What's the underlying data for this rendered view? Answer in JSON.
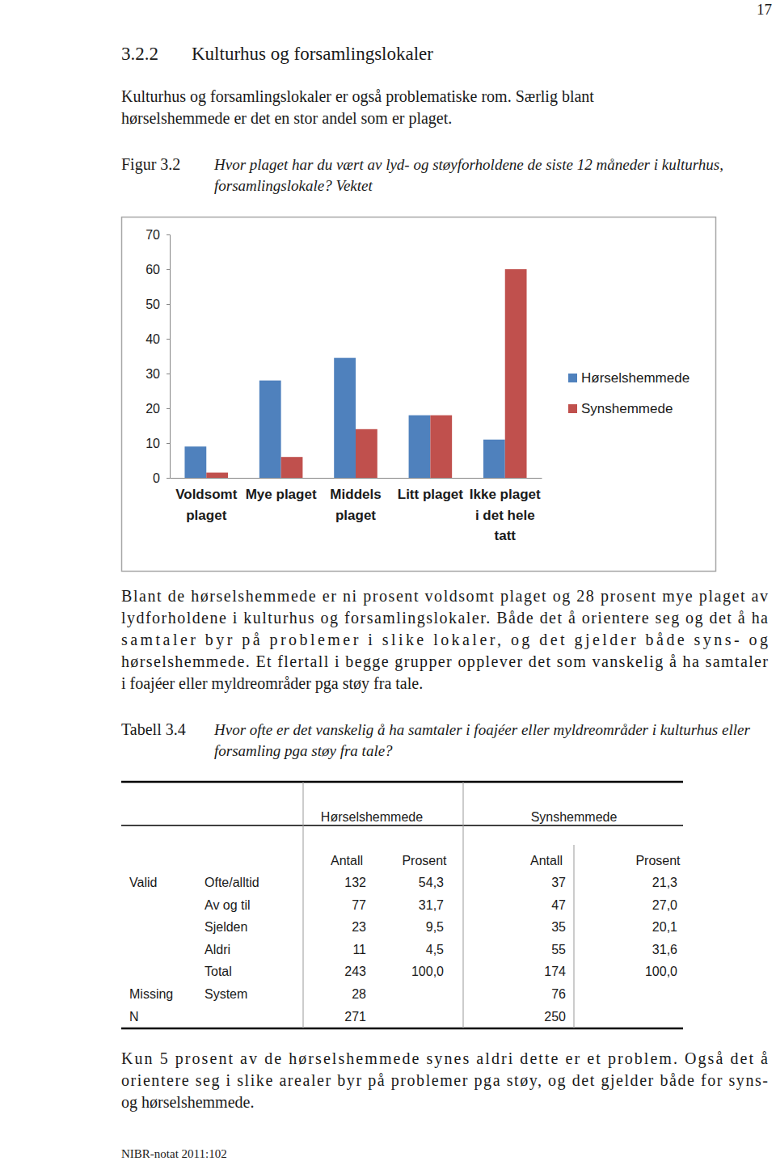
{
  "page_number": "17",
  "heading": {
    "number": "3.2.2",
    "title": "Kulturhus og forsamlingslokaler"
  },
  "intro": [
    "Kulturhus og forsamlingslokaler er også problematiske rom. Særlig blant",
    "hørselshemmede er det en stor andel som er plaget."
  ],
  "figure": {
    "label": "Figur 3.2",
    "caption": [
      "Hvor plaget har du vært av lyd- og støyforholdene de siste 12 måneder i kulturhus,",
      "forsamlingslokale? Vektet"
    ]
  },
  "chart_data": {
    "type": "bar",
    "categories": [
      "Voldsomt plaget",
      "Mye plaget",
      "Middels plaget",
      "Litt plaget",
      "Ikke plaget i det hele tatt"
    ],
    "series": [
      {
        "name": "Hørselshemmede",
        "color": "#4f81bd",
        "values": [
          9,
          28,
          34.5,
          18,
          11
        ]
      },
      {
        "name": "Synshemmede",
        "color": "#c0504d",
        "values": [
          1.5,
          6,
          14,
          18,
          60
        ]
      }
    ],
    "ylim": [
      0,
      70
    ],
    "yticks": [
      0,
      10,
      20,
      30,
      40,
      50,
      60,
      70
    ],
    "grid": false,
    "legend": "right",
    "data_labels": false
  },
  "paragraph_after_figure": [
    "Blant de hørselshemmede er ni prosent voldsomt plaget og 28 prosent mye plaget av",
    "lydforholdene i kulturhus og forsamlingslokaler. Både det å orientere seg og det å ha",
    "samtaler byr på problemer i slike lokaler, og det gjelder både syns- og",
    "hørselshemmede. Et flertall i begge grupper opplever det som vanskelig å ha samtaler",
    "i foajéer eller myldreområder pga støy fra tale."
  ],
  "table": {
    "label": "Tabell 3.4",
    "caption": [
      "Hvor ofte er det vanskelig å ha samtaler i foajéer eller myldreområder i kulturhus eller",
      "forsamling pga støy fra tale?"
    ],
    "groups": [
      "Hørselshemmede",
      "Synshemmede"
    ],
    "subheaders": [
      "Antall",
      "Prosent",
      "Antall",
      "Prosent"
    ],
    "rows": [
      [
        "Valid",
        "Ofte/alltid",
        132,
        "54,3",
        37,
        "21,3"
      ],
      [
        null,
        "Av og til",
        77,
        "31,7",
        47,
        "27,0"
      ],
      [
        null,
        "Sjelden",
        23,
        "9,5",
        35,
        "20,1"
      ],
      [
        null,
        "Aldri",
        11,
        "4,5",
        55,
        "31,6"
      ],
      [
        null,
        "Total",
        243,
        "100,0",
        174,
        "100,0"
      ],
      [
        "Missing",
        "System",
        28,
        null,
        76,
        null
      ],
      [
        "N",
        null,
        271,
        null,
        250,
        null
      ]
    ]
  },
  "paragraph_after_table": [
    "Kun 5 prosent av de hørselshemmede synes aldri dette er et problem. Også det å",
    "orientere seg i slike arealer byr på problemer pga støy, og det gjelder både for syns-",
    "og hørselshemmede."
  ],
  "footer": "NIBR-notat 2011:102"
}
